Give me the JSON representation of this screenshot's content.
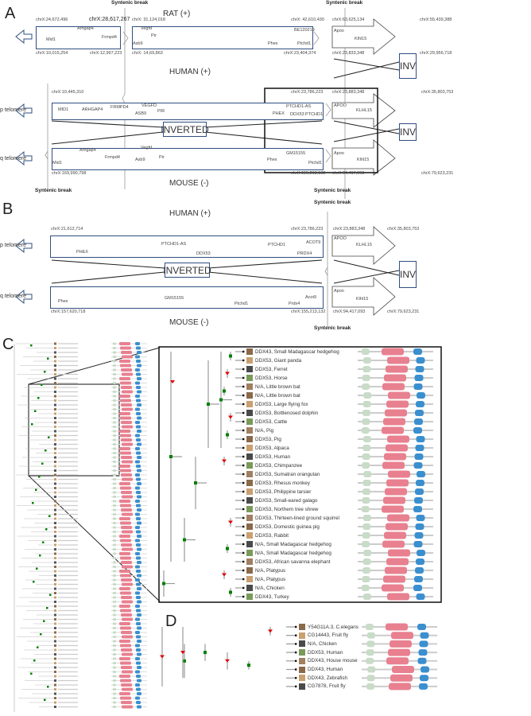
{
  "panel_labels": {
    "a": "A",
    "b": "B",
    "c": "C",
    "d": "D"
  },
  "common": {
    "syntenic_break": "Syntenic break",
    "p_telomere": "p telomere",
    "q_telomere": "q telomere",
    "inverted": "INVERTED",
    "inv": "INV",
    "human": "HUMAN (+)",
    "mouse": "MOUSE (-)",
    "rat": "RAT (+)"
  },
  "panelA": {
    "rat": {
      "c1": "chrX:24,672,496",
      "c2": "chrX:28,617,267",
      "c3": "chrX:10,015,254",
      "c4": "chrX:12,997,223",
      "c5": "chrX: 31,124,018",
      "c6": "chrX: 42,610,430",
      "c7": "chrX: 14,69,863",
      "c8": "chrX:23,404,374",
      "c9": "chrX:63,625,134",
      "c10": "chrX:55,439,388",
      "c11": "chrX:23,833,348",
      "c12": "chrX:29,956,718",
      "genes": [
        "Mid1",
        "Arhgap4",
        "Frmpd4",
        "Vegfd",
        "Pir",
        "Asb9",
        "Phex",
        "BE120219",
        "Ptchd1",
        "Apoo",
        "Klhl15"
      ]
    },
    "human": {
      "c1": "chrX:10,445,310",
      "c2": "chrX:23,786,223",
      "c3": "chrX:23,883,348",
      "c4": "chrX:35,803,753",
      "genes": [
        "MID1",
        "ARHGAP4",
        "FRMPD4",
        "VEGFD",
        "ASB9",
        "PIR",
        "PTCHD1-AS",
        "PHEX",
        "DDX53",
        "PTCHD1",
        "APOO",
        "KLHL15"
      ]
    },
    "mouse": {
      "c1": "chrX:169,990,798",
      "c2": "chrX:155,213,132",
      "c3": "chrX:94,417,093",
      "c4": "chrX:79,623,231",
      "genes": [
        "Mid1",
        "Arhgap4",
        "Frmpd4",
        "Vegfd",
        "Asb9",
        "Pir",
        "GM15155",
        "Phex",
        "Ptchd1",
        "Apoo",
        "Klhl15"
      ]
    }
  },
  "panelB": {
    "human": {
      "c1": "chrX:21,612,714",
      "c2": "chrX:23,786,223",
      "c3": "chrX:23,883,348",
      "c4": "chrX:35,803,753",
      "genes": [
        "PHEX",
        "PTCHD1-AS",
        "DDX53",
        "PTCHD1",
        "ACOT9",
        "PRDX4",
        "APOO",
        "KLHL15"
      ]
    },
    "mouse": {
      "c1": "chrX:157,620,718",
      "c2": "chrX:155,213,132",
      "c3": "chrX:94,417,093",
      "c4": "chrX:79,623,231",
      "genes": [
        "Phex",
        "GM15155",
        "Ptchd1",
        "Prdx4",
        "Acot9",
        "Apoo",
        "Klhl15"
      ]
    }
  },
  "panelC": {
    "rows": [
      "DDX43, Small Madagascar hedgehog",
      "DDX53, Giant panda",
      "DDX53, Ferret",
      "DDX53, Horse",
      "N/A, Little brown bat",
      "N/A, Little brown bat",
      "DDX53, Large flying fox",
      "DDX53, Bottlenosed dolphin",
      "DDX53, Cattle",
      "N/A, Pig",
      "DDX53, Pig",
      "DDX53, Alpaca",
      "DDX53, Human",
      "DDX53, Chimpanzee",
      "DDX53, Sumatran orangutan",
      "DDX53, Rhesus monkey",
      "DDX53, Philippine tarsier",
      "DDX53, Small-eared galago",
      "DDX53, Northern tree shrew",
      "DDX53, Thirteen-lined ground squirrel",
      "DDX53, Domestic guinea pig",
      "DDX53, Rabbit",
      "N/A, Small Madagascar hedgehog",
      "N/A, Small Madagascar hedgehog",
      "DDX53, African savanna elephant",
      "N/A, Platypus",
      "N/A, Platypus",
      "N/A, Chicken",
      "DDX43, Turkey"
    ]
  },
  "panelD": {
    "rows": [
      "Y54G11A.3, C.elegans",
      "CG14443, Fruit fly",
      "N/A, Chicken",
      "DDX53, Human",
      "DDX43, House mouse",
      "DDX43, Human",
      "DDX43, Zebrafish",
      "CG7878, Fruit fly"
    ]
  },
  "colors": {
    "box_border": "#2f4f7f",
    "duplication_node": "#e00000",
    "speciation_node": "#008000",
    "domain_green": "#c8dcc8",
    "domain_pink": "#e8808f",
    "domain_blue": "#3a8fcf"
  }
}
